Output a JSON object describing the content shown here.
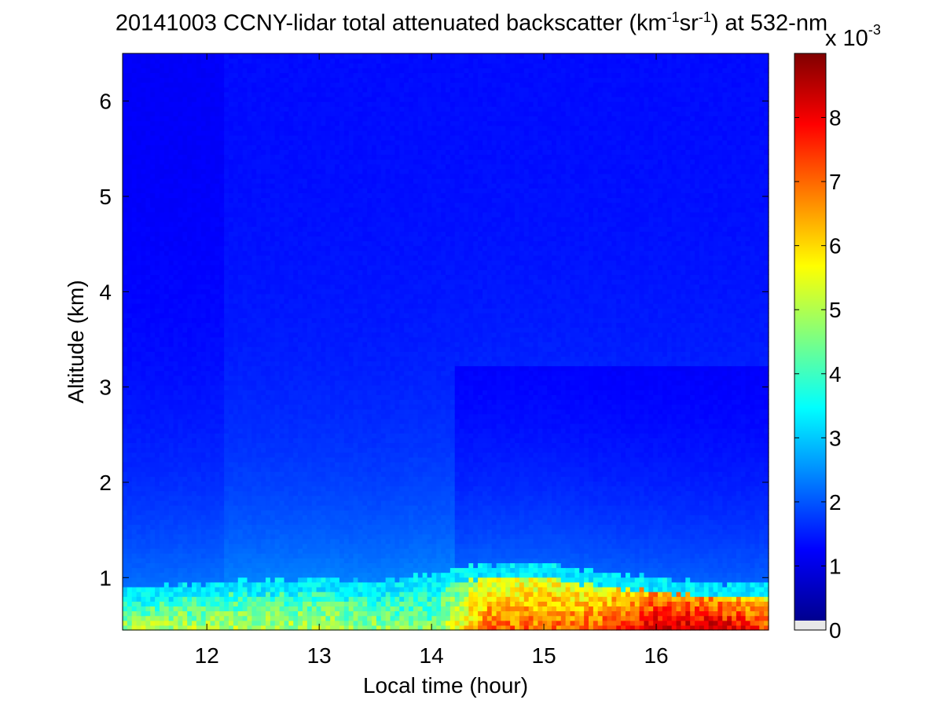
{
  "chart_data": {
    "type": "heatmap",
    "title": {
      "date": "20141003",
      "text_before": "CCNY-lidar total attenuated backscatter (km",
      "sup1": "-1",
      "text_mid": "sr",
      "sup2": "-1",
      "text_after": ") at 532-nm"
    },
    "xlabel": "Local time (hour)",
    "ylabel": "Altitude (km)",
    "xlim": [
      11.25,
      17.0
    ],
    "ylim": [
      0.45,
      6.5
    ],
    "xticks": [
      12,
      13,
      14,
      15,
      16
    ],
    "yticks": [
      1,
      2,
      3,
      4,
      5,
      6
    ],
    "colorbar": {
      "min": 0,
      "max": 0.009,
      "ticks": [
        0,
        1,
        2,
        3,
        4,
        5,
        6,
        7,
        8
      ],
      "multiplier": "x 10",
      "exponent": "-3",
      "colormap": "jet"
    },
    "features": {
      "boundary_layer_top_km": [
        {
          "time": 11.3,
          "height": 0.75
        },
        {
          "time": 12.0,
          "height": 0.8
        },
        {
          "time": 13.0,
          "height": 0.85
        },
        {
          "time": 13.5,
          "height": 0.8
        },
        {
          "time": 14.0,
          "height": 0.9
        },
        {
          "time": 14.5,
          "height": 1.0
        },
        {
          "time": 15.0,
          "height": 1.0
        },
        {
          "time": 15.5,
          "height": 0.9
        },
        {
          "time": 16.0,
          "height": 0.85
        },
        {
          "time": 16.5,
          "height": 0.8
        },
        {
          "time": 17.0,
          "height": 0.8
        }
      ],
      "boundary_layer_peak_value_e-3": [
        {
          "time": 11.3,
          "value": 5.0
        },
        {
          "time": 13.0,
          "value": 5.0
        },
        {
          "time": 14.0,
          "value": 4.5
        },
        {
          "time": 14.5,
          "value": 7.0
        },
        {
          "time": 15.0,
          "value": 7.0
        },
        {
          "time": 15.5,
          "value": 7.2
        },
        {
          "time": 16.0,
          "value": 8.5
        },
        {
          "time": 16.5,
          "value": 8.6
        },
        {
          "time": 17.0,
          "value": 7.5
        }
      ],
      "background_aloft_value_e-3": 1.2,
      "near_surface_layer_value_e-3": 2.4
    }
  }
}
